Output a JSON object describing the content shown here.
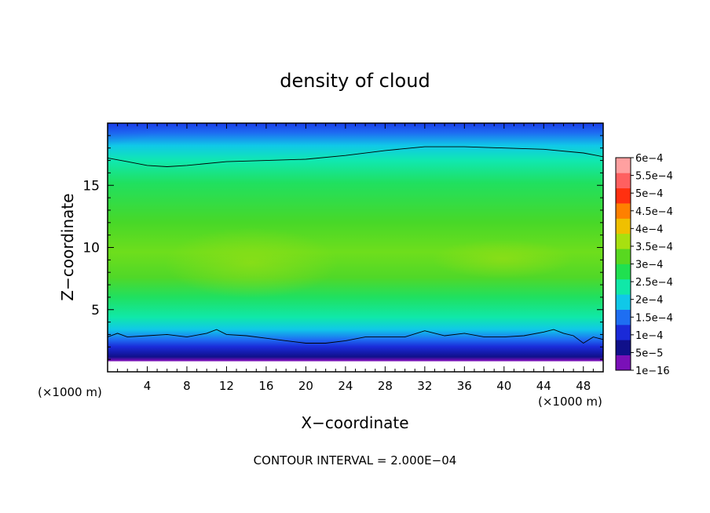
{
  "chart_data": {
    "type": "heatmap",
    "title": "density of cloud",
    "xlabel": "X−coordinate",
    "ylabel": "Z−coordinate",
    "x_unit_left": "(×1000 m)",
    "x_unit_right": "(×1000 m)",
    "xlim": [
      0,
      50
    ],
    "ylim": [
      0,
      20
    ],
    "x_ticks": [
      4,
      8,
      12,
      16,
      20,
      24,
      28,
      32,
      36,
      40,
      44,
      48
    ],
    "x_tick_labels": [
      "4",
      "8",
      "12",
      "16",
      "20",
      "24",
      "28",
      "32",
      "36",
      "40",
      "44",
      "48"
    ],
    "y_ticks": [
      5,
      10,
      15
    ],
    "y_tick_labels": [
      "5",
      "10",
      "15"
    ],
    "colorbar": {
      "levels": [
        "1e−16",
        "5e−5",
        "1e−4",
        "1.5e−4",
        "2e−4",
        "2.5e−4",
        "3e−4",
        "3.5e−4",
        "4e−4",
        "4.5e−4",
        "5e−4",
        "5.5e−4",
        "6e−4"
      ],
      "colors": [
        "#7a10b8",
        "#10108a",
        "#1a2ad8",
        "#1e6ef2",
        "#10c8e8",
        "#10e8a8",
        "#20e050",
        "#58d820",
        "#a8e010",
        "#f0c000",
        "#ff8000",
        "#ff3010",
        "#ff6060",
        "#ffa0a0"
      ]
    },
    "contour_interval_text": "CONTOUR INTERVAL = 2.000E−04",
    "contours": [
      {
        "level": 0.0002,
        "x": [
          0,
          2,
          4,
          6,
          8,
          12,
          16,
          20,
          24,
          28,
          32,
          36,
          40,
          44,
          48,
          50
        ],
        "z": [
          17.2,
          16.9,
          16.6,
          16.5,
          16.6,
          16.9,
          17.0,
          17.1,
          17.4,
          17.8,
          18.1,
          18.1,
          18.0,
          17.9,
          17.6,
          17.3
        ]
      },
      {
        "level": 0.0002,
        "x": [
          0,
          1,
          2,
          4,
          6,
          8,
          10,
          11,
          12,
          14,
          16,
          18,
          20,
          22,
          24,
          26,
          28,
          30,
          32,
          34,
          36,
          38,
          40,
          42,
          44,
          45,
          46,
          47,
          48,
          49,
          50
        ],
        "z": [
          2.8,
          3.1,
          2.8,
          2.9,
          3.0,
          2.8,
          3.1,
          3.4,
          3.0,
          2.9,
          2.7,
          2.5,
          2.3,
          2.3,
          2.5,
          2.8,
          2.8,
          2.8,
          3.3,
          2.9,
          3.1,
          2.8,
          2.8,
          2.9,
          3.2,
          3.4,
          3.1,
          2.9,
          2.3,
          2.8,
          2.6
        ]
      }
    ]
  }
}
